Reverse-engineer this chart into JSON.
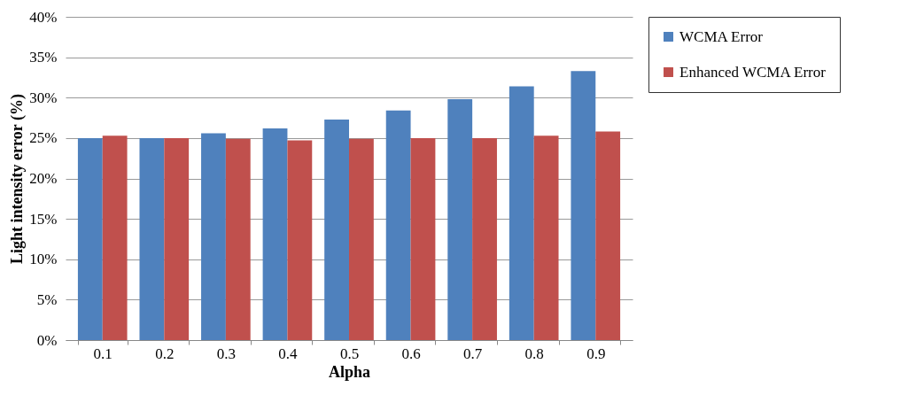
{
  "chart_data": {
    "type": "bar",
    "xlabel": "Alpha",
    "ylabel": "Light intensity error (%)",
    "categories": [
      "0.1",
      "0.2",
      "0.3",
      "0.4",
      "0.5",
      "0.6",
      "0.7",
      "0.8",
      "0.9"
    ],
    "series": [
      {
        "name": "WCMA Error",
        "color": "#4f81bd",
        "values": [
          25.0,
          25.0,
          25.6,
          26.2,
          27.3,
          28.4,
          29.8,
          31.4,
          33.3
        ]
      },
      {
        "name": "Enhanced WCMA Error",
        "color": "#c0504d",
        "values": [
          25.3,
          25.0,
          24.9,
          24.7,
          24.9,
          25.0,
          25.0,
          25.3,
          25.8
        ]
      }
    ],
    "ylim": [
      0,
      40
    ],
    "yticks": [
      {
        "value": 0,
        "label": "0%"
      },
      {
        "value": 5,
        "label": "5%"
      },
      {
        "value": 10,
        "label": "10%"
      },
      {
        "value": 15,
        "label": "15%"
      },
      {
        "value": 20,
        "label": "20%"
      },
      {
        "value": 25,
        "label": "25%"
      },
      {
        "value": 30,
        "label": "30%"
      },
      {
        "value": 35,
        "label": "35%"
      },
      {
        "value": 40,
        "label": "40%"
      }
    ],
    "grid": "y",
    "legend": "right"
  }
}
